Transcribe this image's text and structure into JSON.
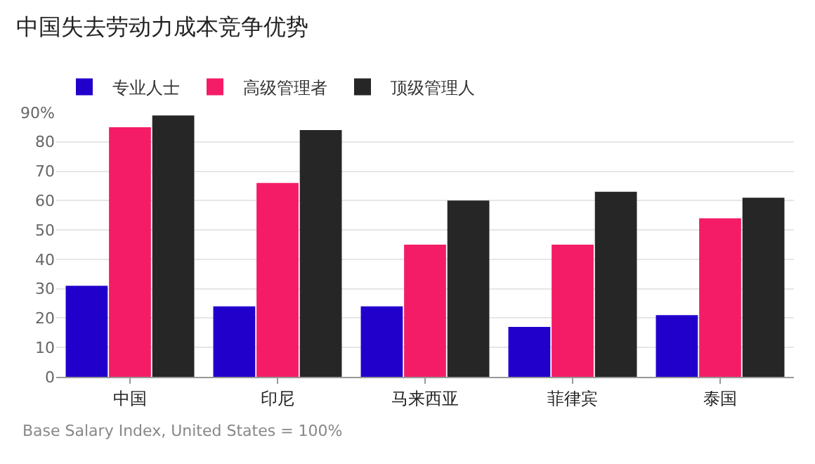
{
  "chart_data": {
    "type": "bar",
    "title": "中国失去劳动力成本竞争优势",
    "categories": [
      "中国",
      "印尼",
      "马来西亚",
      "菲律宾",
      "泰国"
    ],
    "series": [
      {
        "name": "专业人士",
        "color": "#2200cc",
        "values": [
          31,
          24,
          24,
          17,
          21
        ]
      },
      {
        "name": "高级管理者",
        "color": "#f41c66",
        "values": [
          85,
          66,
          45,
          45,
          54
        ]
      },
      {
        "name": "顶级管理人",
        "color": "#262626",
        "values": [
          89,
          84,
          60,
          63,
          61
        ]
      }
    ],
    "ylim": [
      0,
      90
    ],
    "yticks": [
      0,
      10,
      20,
      30,
      40,
      50,
      60,
      70,
      80,
      {
        "value": 90,
        "label": "90%"
      }
    ],
    "grid": "y",
    "legend": "top left",
    "annotations": [
      "Base Salary Index, United States = 100%"
    ]
  }
}
